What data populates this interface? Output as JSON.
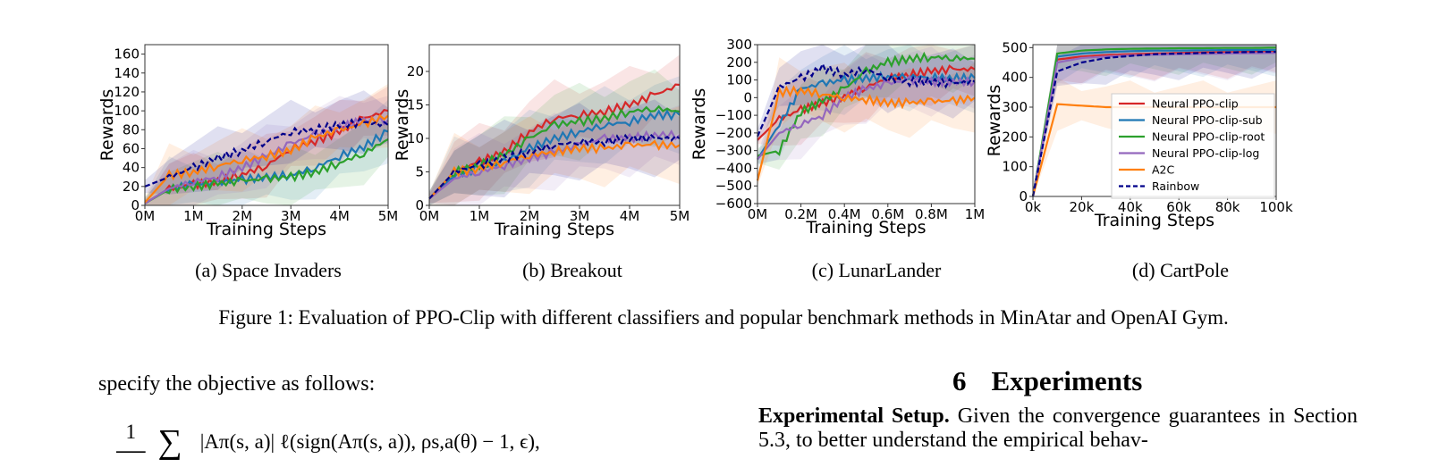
{
  "subplots": [
    {
      "id": "a",
      "caption": "(a)  Space Invaders",
      "ylabel": "Rewards",
      "xlabel": "Training Steps",
      "xticks": [
        "0M",
        "1M",
        "2M",
        "3M",
        "4M",
        "5M"
      ],
      "yticks": [
        "0",
        "20",
        "40",
        "60",
        "80",
        "100",
        "120",
        "140",
        "160"
      ]
    },
    {
      "id": "b",
      "caption": "(b)  Breakout",
      "ylabel": "Rewards",
      "xlabel": "Training Steps",
      "xticks": [
        "0M",
        "1M",
        "2M",
        "3M",
        "4M",
        "5M"
      ],
      "yticks": [
        "0",
        "5",
        "10",
        "15",
        "20"
      ]
    },
    {
      "id": "c",
      "caption": "(c)  LunarLander",
      "ylabel": "Rewards",
      "xlabel": "Training Steps",
      "xticks": [
        "0M",
        "0.2M",
        "0.4M",
        "0.6M",
        "0.8M",
        "1M"
      ],
      "yticks": [
        "−600",
        "−500",
        "−400",
        "−300",
        "−200",
        "−100",
        "0",
        "100",
        "200",
        "300"
      ]
    },
    {
      "id": "d",
      "caption": "(d)  CartPole",
      "ylabel": "Rewards",
      "xlabel": "Training Steps",
      "xticks": [
        "0k",
        "20k",
        "40k",
        "60k",
        "80k",
        "100k"
      ],
      "yticks": [
        "0",
        "100",
        "200",
        "300",
        "400",
        "500"
      ]
    }
  ],
  "legend": [
    {
      "label": "Neural PPO-clip",
      "color": "#d62728",
      "dash": false
    },
    {
      "label": "Neural PPO-clip-sub",
      "color": "#1f77b4",
      "dash": false
    },
    {
      "label": "Neural PPO-clip-root",
      "color": "#2ca02c",
      "dash": false
    },
    {
      "label": "Neural PPO-clip-log",
      "color": "#9467bd",
      "dash": false
    },
    {
      "label": "A2C",
      "color": "#ff7f0e",
      "dash": false
    },
    {
      "label": "Rainbow",
      "color": "#00008b",
      "dash": true
    }
  ],
  "chart_data": [
    {
      "type": "line",
      "title": "Space Invaders",
      "xlabel": "Training Steps",
      "ylabel": "Rewards",
      "xlim": [
        0,
        5
      ],
      "ylim": [
        0,
        170
      ],
      "x": [
        0,
        0.5,
        1,
        1.5,
        2,
        2.5,
        3,
        3.5,
        4,
        4.5,
        5
      ],
      "series": [
        {
          "name": "Neural PPO-clip",
          "values": [
            2,
            18,
            22,
            25,
            33,
            42,
            60,
            68,
            78,
            92,
            100
          ]
        },
        {
          "name": "Neural PPO-clip-sub",
          "values": [
            2,
            18,
            22,
            24,
            27,
            30,
            32,
            40,
            52,
            62,
            78
          ]
        },
        {
          "name": "Neural PPO-clip-root",
          "values": [
            2,
            17,
            20,
            23,
            26,
            28,
            30,
            35,
            45,
            55,
            70
          ]
        },
        {
          "name": "Neural PPO-clip-log",
          "values": [
            2,
            18,
            25,
            30,
            40,
            52,
            65,
            75,
            82,
            90,
            90
          ]
        },
        {
          "name": "A2C",
          "values": [
            3,
            32,
            35,
            42,
            48,
            52,
            58,
            72,
            80,
            86,
            95
          ]
        },
        {
          "name": "Rainbow",
          "values": [
            20,
            30,
            40,
            50,
            58,
            68,
            78,
            80,
            85,
            88,
            85
          ]
        }
      ]
    },
    {
      "type": "line",
      "title": "Breakout",
      "xlabel": "Training Steps",
      "ylabel": "Rewards",
      "xlim": [
        0,
        5
      ],
      "ylim": [
        0,
        24
      ],
      "x": [
        0,
        0.5,
        1,
        1.5,
        2,
        2.5,
        3,
        3.5,
        4,
        4.5,
        5
      ],
      "series": [
        {
          "name": "Neural PPO-clip",
          "values": [
            1,
            5,
            6.5,
            8,
            11,
            13,
            13.5,
            14,
            15,
            16.5,
            18
          ]
        },
        {
          "name": "Neural PPO-clip-sub",
          "values": [
            1,
            4.5,
            5.5,
            6.5,
            8.5,
            10,
            11,
            12,
            12.5,
            13.5,
            13.5
          ]
        },
        {
          "name": "Neural PPO-clip-root",
          "values": [
            1,
            5,
            6,
            7.5,
            10,
            12,
            12.5,
            13,
            14,
            14.5,
            14
          ]
        },
        {
          "name": "Neural PPO-clip-log",
          "values": [
            1,
            4,
            5,
            6,
            7,
            8,
            9,
            10,
            10,
            10.5,
            10.5
          ]
        },
        {
          "name": "A2C",
          "values": [
            1,
            5,
            5.5,
            6.5,
            7.5,
            8,
            8.5,
            8.5,
            9,
            9,
            9
          ]
        },
        {
          "name": "Rainbow",
          "values": [
            1,
            5,
            6,
            7,
            8,
            9,
            9.5,
            9.5,
            10,
            10,
            10
          ]
        }
      ]
    },
    {
      "type": "line",
      "title": "LunarLander",
      "xlabel": "Training Steps",
      "ylabel": "Rewards",
      "xlim": [
        0,
        1
      ],
      "ylim": [
        -600,
        300
      ],
      "x": [
        0,
        0.1,
        0.2,
        0.3,
        0.4,
        0.5,
        0.6,
        0.7,
        0.8,
        0.9,
        1
      ],
      "series": [
        {
          "name": "Neural PPO-clip",
          "values": [
            -240,
            -120,
            -70,
            -30,
            10,
            60,
            110,
            130,
            150,
            160,
            160
          ]
        },
        {
          "name": "Neural PPO-clip-sub",
          "values": [
            -350,
            -150,
            50,
            80,
            100,
            110,
            120,
            120,
            115,
            110,
            110
          ]
        },
        {
          "name": "Neural PPO-clip-root",
          "values": [
            -330,
            -300,
            -80,
            -20,
            50,
            150,
            200,
            220,
            230,
            225,
            220
          ]
        },
        {
          "name": "Neural PPO-clip-log",
          "values": [
            -350,
            -200,
            -150,
            -100,
            0,
            50,
            80,
            100,
            90,
            90,
            90
          ]
        },
        {
          "name": "A2C",
          "values": [
            -470,
            30,
            40,
            20,
            0,
            -10,
            -30,
            -30,
            -20,
            -20,
            0
          ]
        },
        {
          "name": "Rainbow",
          "values": [
            -220,
            60,
            110,
            170,
            130,
            160,
            110,
            90,
            90,
            80,
            90
          ]
        }
      ]
    },
    {
      "type": "line",
      "title": "CartPole",
      "xlabel": "Training Steps",
      "ylabel": "Rewards",
      "xlim": [
        0,
        100
      ],
      "ylim": [
        0,
        510
      ],
      "x": [
        0,
        10,
        20,
        30,
        40,
        50,
        60,
        70,
        80,
        90,
        100
      ],
      "series": [
        {
          "name": "Neural PPO-clip",
          "values": [
            0,
            460,
            470,
            475,
            478,
            480,
            482,
            484,
            485,
            486,
            486
          ]
        },
        {
          "name": "Neural PPO-clip-sub",
          "values": [
            0,
            470,
            480,
            485,
            488,
            490,
            490,
            491,
            492,
            492,
            492
          ]
        },
        {
          "name": "Neural PPO-clip-root",
          "values": [
            0,
            480,
            490,
            494,
            496,
            497,
            498,
            498,
            499,
            499,
            500
          ]
        },
        {
          "name": "Neural PPO-clip-log",
          "values": [
            0,
            450,
            465,
            470,
            474,
            476,
            478,
            479,
            480,
            481,
            482
          ]
        },
        {
          "name": "A2C",
          "values": [
            0,
            310,
            305,
            300,
            300,
            300,
            300,
            300,
            300,
            300,
            300
          ]
        },
        {
          "name": "Rainbow",
          "values": [
            0,
            420,
            450,
            465,
            472,
            478,
            480,
            482,
            484,
            485,
            486
          ]
        }
      ]
    }
  ],
  "figure_caption": "Figure 1: Evaluation of PPO-Clip with different classifiers and popular benchmark methods in MinAtar and OpenAI Gym.",
  "left_text": "specify the objective as follows:",
  "formula_text": "|Aπ(s, a)| ℓ(sign(Aπ(s, a)), ρs,a(θ) − 1, ϵ),",
  "section_number": "6",
  "section_title": "Experiments",
  "para_bold": "Experimental Setup.",
  "para_text": "Given the convergence guarantees in Section 5.3, to better understand the empirical behav-"
}
